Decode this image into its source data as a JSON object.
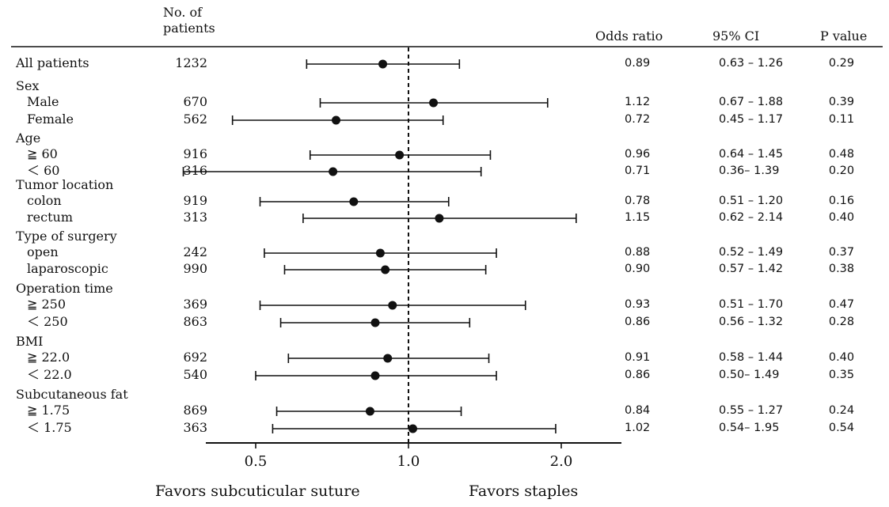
{
  "headers": {
    "patients": "No. of\npatients",
    "odds_ratio": "Odds ratio",
    "ci": "95% CI",
    "p_value": "P value"
  },
  "footer": {
    "favors_left": "Favors subcuticular suture",
    "favors_right": "Favors staples"
  },
  "chart_data": {
    "type": "forest",
    "reference_line": 1.0,
    "x_scale": "log",
    "xlim": [
      0.35,
      2.4
    ],
    "x_ticks": [
      {
        "value": 0.5,
        "label": "0.5"
      },
      {
        "value": 1.0,
        "label": "1.0"
      },
      {
        "value": 2.0,
        "label": "2.0"
      }
    ],
    "rows": [
      {
        "group": "",
        "label": "All patients",
        "n": "1232",
        "or": 0.89,
        "lo": 0.63,
        "hi": 1.26,
        "or_text": "0.89",
        "ci_text": "0.63 – 1.26",
        "p_text": "0.29"
      },
      {
        "group": "Sex",
        "label": "Male",
        "n": "670",
        "or": 1.12,
        "lo": 0.67,
        "hi": 1.88,
        "or_text": "1.12",
        "ci_text": "0.67 – 1.88",
        "p_text": "0.39"
      },
      {
        "group": "",
        "label": "Female",
        "n": "562",
        "or": 0.72,
        "lo": 0.45,
        "hi": 1.17,
        "or_text": "0.72",
        "ci_text": "0.45 – 1.17",
        "p_text": "0.11"
      },
      {
        "group": "Age",
        "label": "≧ 60",
        "n": "916",
        "or": 0.96,
        "lo": 0.64,
        "hi": 1.45,
        "or_text": "0.96",
        "ci_text": "0.64 – 1.45",
        "p_text": "0.48"
      },
      {
        "group": "",
        "label": "＜ 60",
        "n": "316",
        "or": 0.71,
        "lo": 0.36,
        "hi": 1.39,
        "or_text": "0.71",
        "ci_text": "0.36– 1.39",
        "p_text": "0.20"
      },
      {
        "group": "Tumor location",
        "label": "colon",
        "n": "919",
        "or": 0.78,
        "lo": 0.51,
        "hi": 1.2,
        "or_text": "0.78",
        "ci_text": "0.51 – 1.20",
        "p_text": "0.16"
      },
      {
        "group": "",
        "label": "rectum",
        "n": "313",
        "or": 1.15,
        "lo": 0.62,
        "hi": 2.14,
        "or_text": "1.15",
        "ci_text": "0.62 – 2.14",
        "p_text": "0.40"
      },
      {
        "group": "Type of surgery",
        "label": "open",
        "n": "242",
        "or": 0.88,
        "lo": 0.52,
        "hi": 1.49,
        "or_text": "0.88",
        "ci_text": "0.52 – 1.49",
        "p_text": "0.37"
      },
      {
        "group": "",
        "label": "laparoscopic",
        "n": "990",
        "or": 0.9,
        "lo": 0.57,
        "hi": 1.42,
        "or_text": "0.90",
        "ci_text": "0.57 – 1.42",
        "p_text": "0.38"
      },
      {
        "group": "Operation time",
        "label": "≧ 250",
        "n": "369",
        "or": 0.93,
        "lo": 0.51,
        "hi": 1.7,
        "or_text": "0.93",
        "ci_text": "0.51 – 1.70",
        "p_text": "0.47"
      },
      {
        "group": "",
        "label": "＜ 250",
        "n": "863",
        "or": 0.86,
        "lo": 0.56,
        "hi": 1.32,
        "or_text": "0.86",
        "ci_text": "0.56 – 1.32",
        "p_text": "0.28"
      },
      {
        "group": "BMI",
        "label": "≧ 22.0",
        "n": "692",
        "or": 0.91,
        "lo": 0.58,
        "hi": 1.44,
        "or_text": "0.91",
        "ci_text": "0.58 – 1.44",
        "p_text": "0.40"
      },
      {
        "group": "",
        "label": "＜ 22.0",
        "n": "540",
        "or": 0.86,
        "lo": 0.5,
        "hi": 1.49,
        "or_text": "0.86",
        "ci_text": "0.50– 1.49",
        "p_text": "0.35"
      },
      {
        "group": "Subcutaneous fat",
        "label": "≧ 1.75",
        "n": "869",
        "or": 0.84,
        "lo": 0.55,
        "hi": 1.27,
        "or_text": "0.84",
        "ci_text": "0.55 – 1.27",
        "p_text": "0.24"
      },
      {
        "group": "",
        "label": "＜ 1.75",
        "n": "363",
        "or": 1.02,
        "lo": 0.54,
        "hi": 1.95,
        "or_text": "1.02",
        "ci_text": "0.54– 1.95",
        "p_text": "0.54"
      }
    ]
  }
}
